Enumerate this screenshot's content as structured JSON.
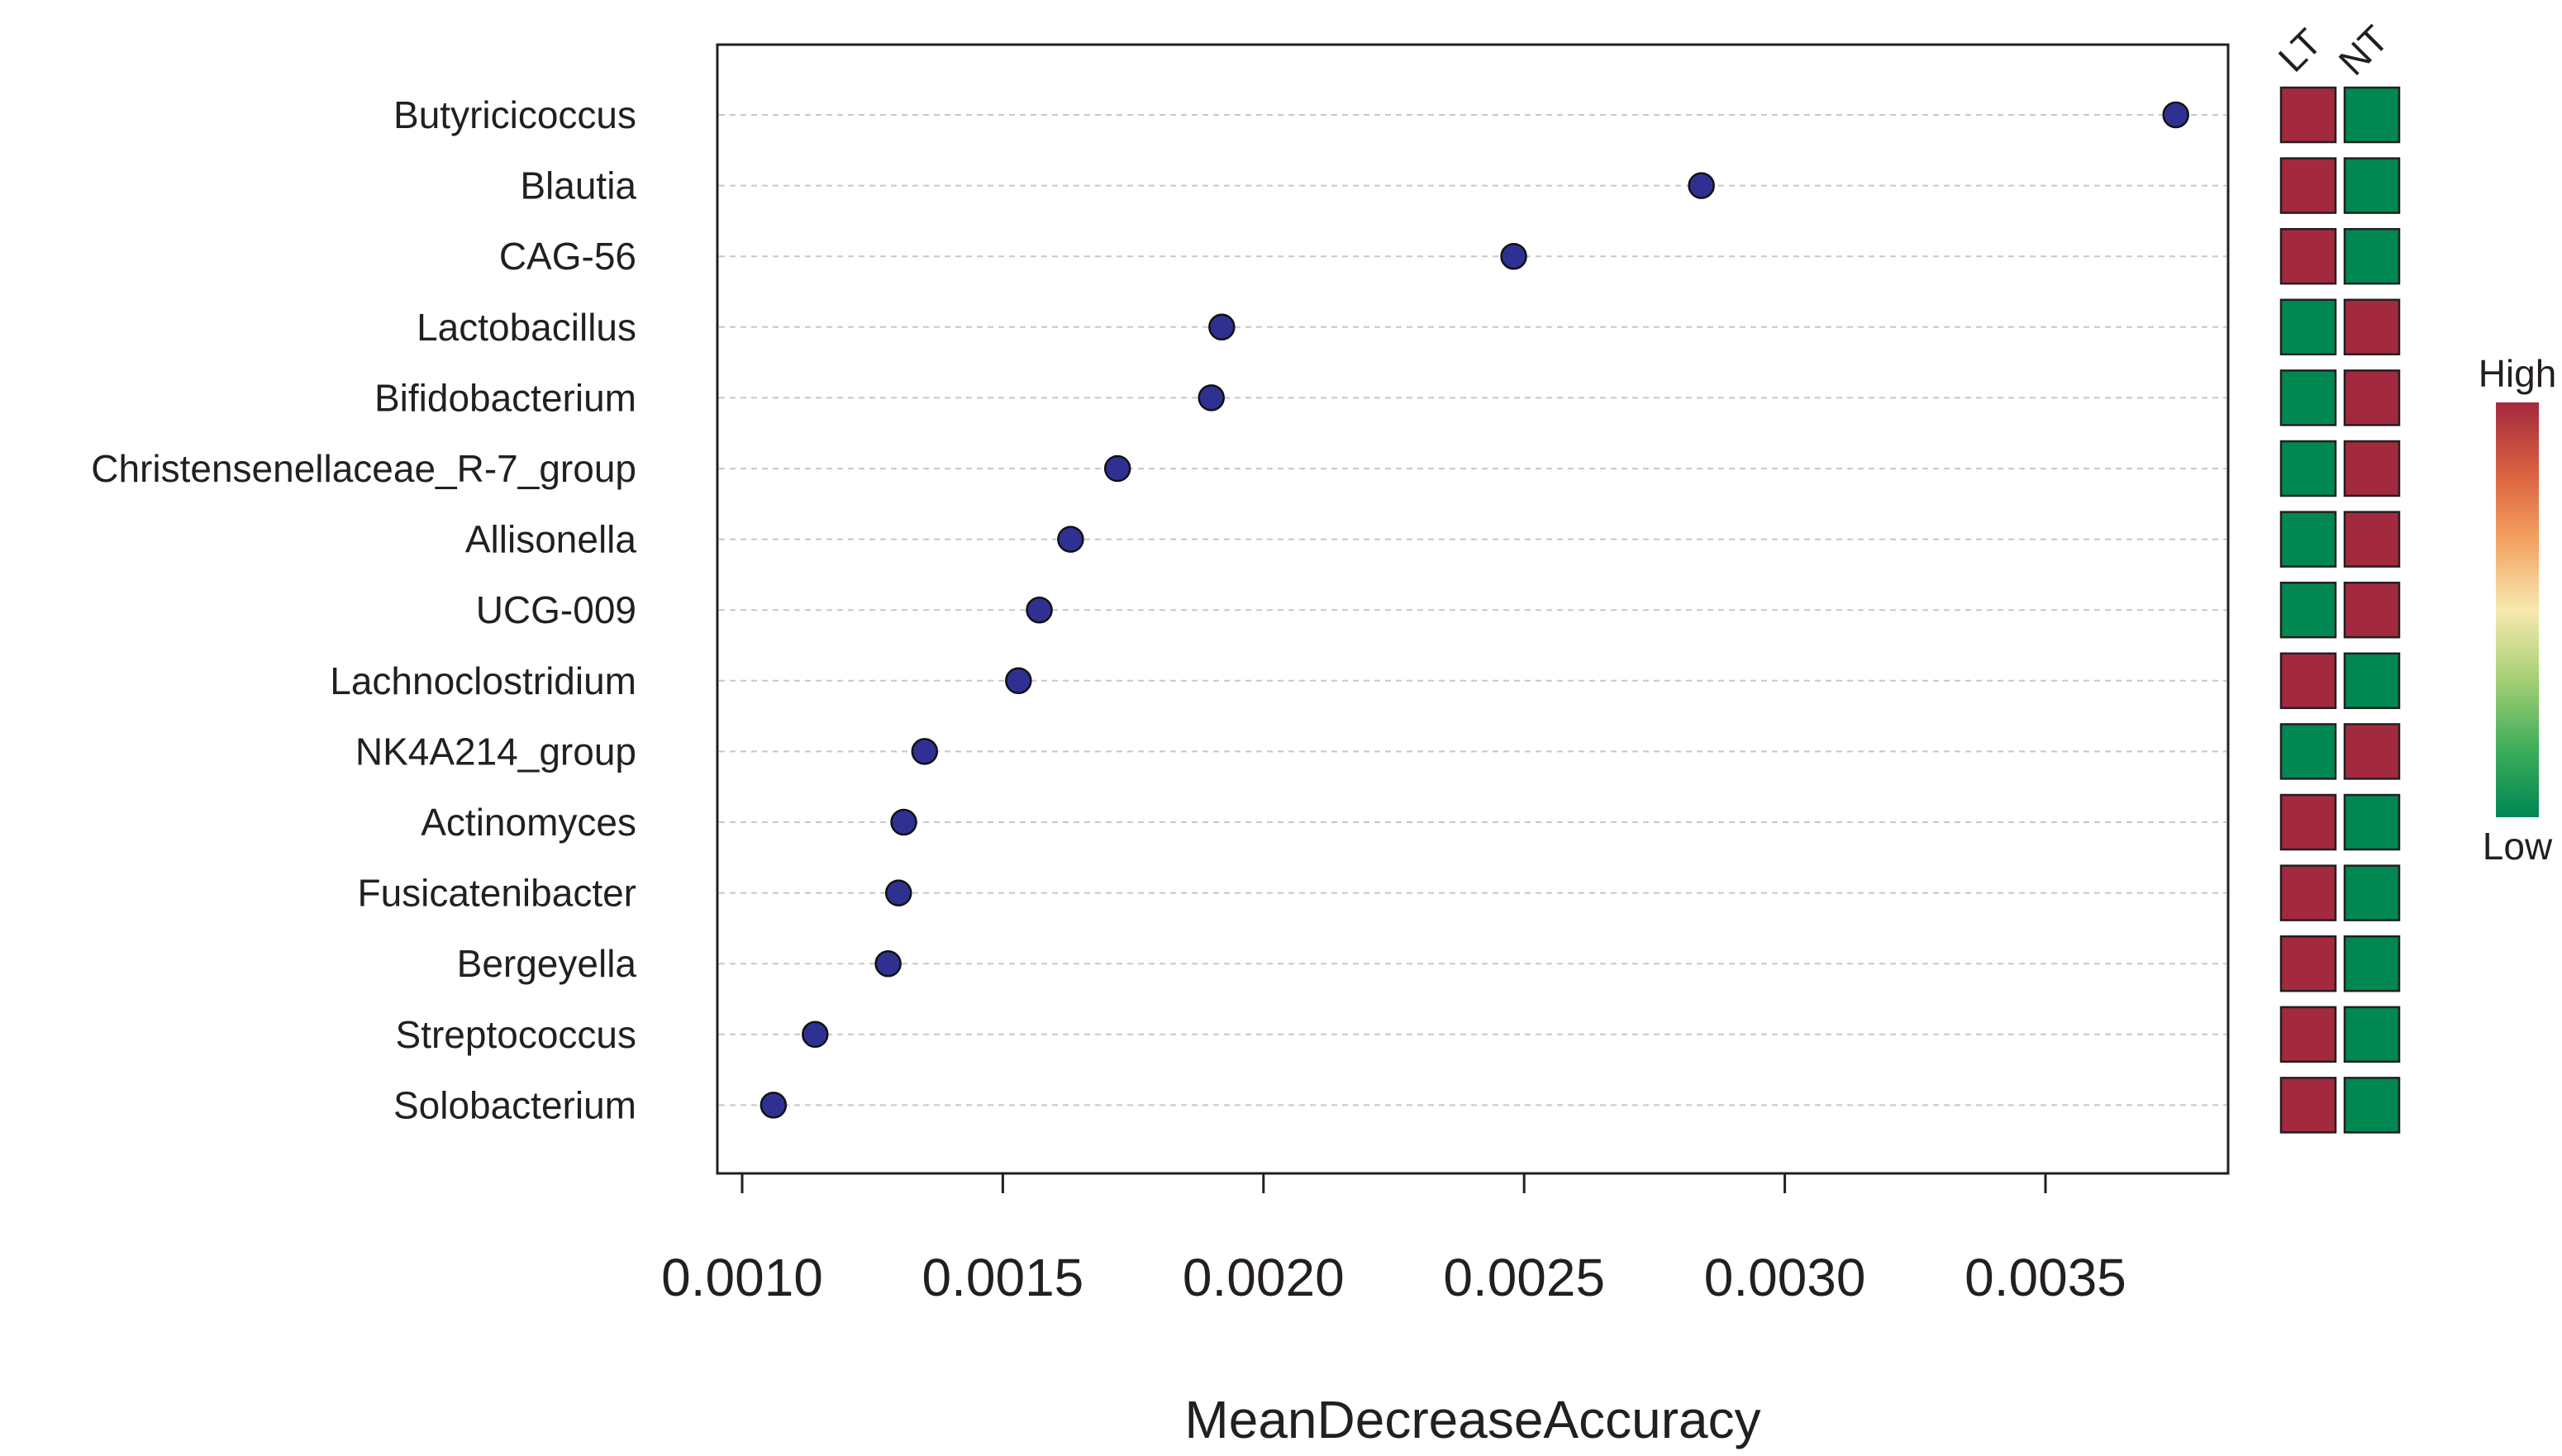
{
  "chart_data": {
    "type": "scatter",
    "xlabel": "MeanDecreaseAccuracy",
    "ylabel": "",
    "xlim": [
      0.00095,
      0.0038
    ],
    "xticks": [
      "0.0010",
      "0.0015",
      "0.0020",
      "0.0025",
      "0.0030",
      "0.0035"
    ],
    "xtick_values": [
      0.001,
      0.0015,
      0.002,
      0.0025,
      0.003,
      0.0035
    ],
    "grid": "horizontal dashed",
    "categories": [
      "Butyricicoccus",
      "Blautia",
      "CAG-56",
      "Lactobacillus",
      "Bifidobacterium",
      "Christensenellaceae_R-7_group",
      "Allisonella",
      "UCG-009",
      "Lachnoclostridium",
      "NK4A214_group",
      "Actinomyces",
      "Fusicatenibacter",
      "Bergeyella",
      "Streptococcus",
      "Solobacterium"
    ],
    "values": [
      0.00375,
      0.00284,
      0.00248,
      0.00192,
      0.0019,
      0.00172,
      0.00163,
      0.00157,
      0.00153,
      0.00135,
      0.00131,
      0.0013,
      0.00128,
      0.00114,
      0.00106
    ],
    "point_color": "#2e3192",
    "heatmap": {
      "columns": [
        "LT",
        "NT"
      ],
      "levels": [
        [
          "High",
          "Low"
        ],
        [
          "High",
          "Low"
        ],
        [
          "High",
          "Low"
        ],
        [
          "Low",
          "High"
        ],
        [
          "Low",
          "High"
        ],
        [
          "Low",
          "High"
        ],
        [
          "Low",
          "High"
        ],
        [
          "Low",
          "High"
        ],
        [
          "High",
          "Low"
        ],
        [
          "Low",
          "High"
        ],
        [
          "High",
          "Low"
        ],
        [
          "High",
          "Low"
        ],
        [
          "High",
          "Low"
        ],
        [
          "High",
          "Low"
        ],
        [
          "High",
          "Low"
        ]
      ],
      "colors": {
        "High": "#a3293f",
        "Low": "#008752"
      }
    },
    "colorbar": {
      "high_label": "High",
      "low_label": "Low",
      "gradient": [
        "#a3293f",
        "#d9603f",
        "#f4a261",
        "#f7e9b0",
        "#a6cf74",
        "#3fae5c",
        "#008752"
      ]
    }
  }
}
